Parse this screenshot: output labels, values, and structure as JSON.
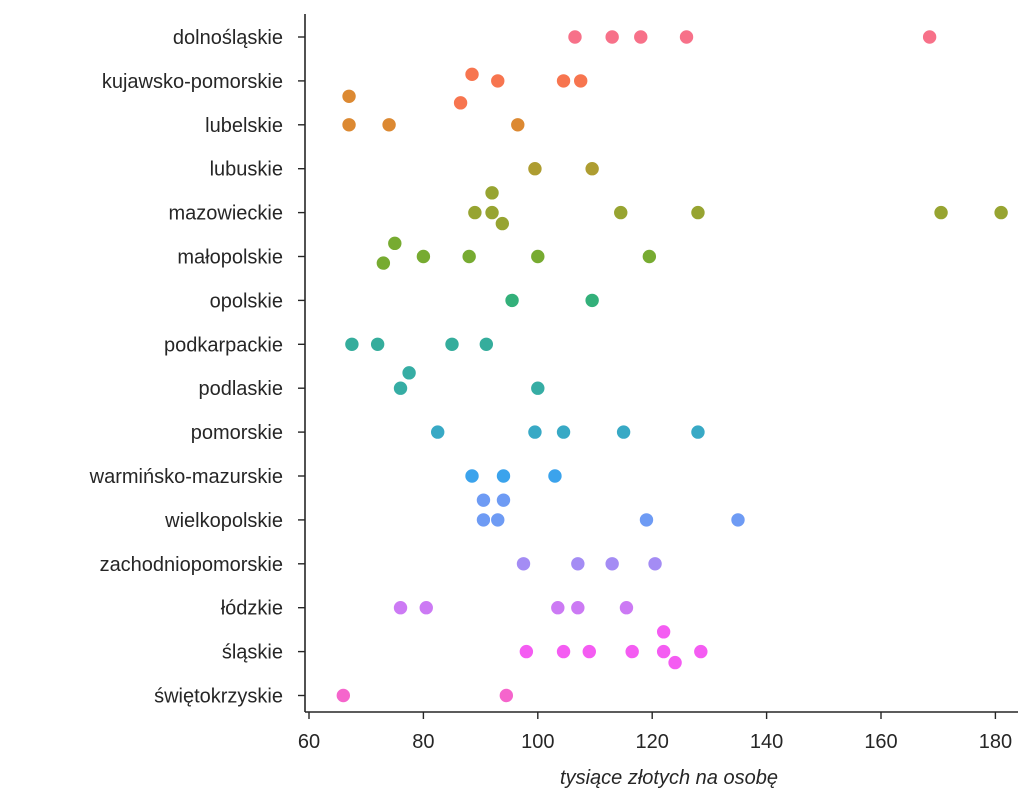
{
  "chart_data": {
    "type": "scatter",
    "subtype": "strip",
    "title": "",
    "xlabel": "tysiące złotych na osobę",
    "ylabel": "",
    "xlim": [
      59,
      184
    ],
    "xticks": [
      60,
      80,
      100,
      120,
      140,
      160,
      180
    ],
    "grid": false,
    "legend": "none",
    "categories": [
      "dolnośląskie",
      "kujawsko-pomorskie",
      "lubelskie",
      "lubuskie",
      "mazowieckie",
      "małopolskie",
      "opolskie",
      "podkarpackie",
      "podlaskie",
      "pomorskie",
      "warmińsko-mazurskie",
      "wielkopolskie",
      "zachodniopomorskie",
      "łódzkie",
      "śląskie",
      "świętokrzyskie"
    ],
    "colors": [
      "#f77189",
      "#f7754f",
      "#dc8932",
      "#ae9d31",
      "#97a431",
      "#77ab31",
      "#33b07a",
      "#35ad9c",
      "#36ada4",
      "#38a9c5",
      "#3ba3ec",
      "#6e9bf4",
      "#a48cf4",
      "#cc7af4",
      "#f45cf2",
      "#f565cc"
    ],
    "points": [
      [
        106.5,
        113,
        118,
        126,
        168.5
      ],
      [
        86.5,
        88.5,
        93,
        104.5,
        107.5
      ],
      [
        67,
        67,
        74,
        96.5
      ],
      [
        99.5,
        109.5
      ],
      [
        92,
        89,
        92,
        93.8,
        114.5,
        128,
        170.5,
        181
      ],
      [
        75,
        73,
        80,
        88,
        100,
        119.5
      ],
      [
        95.5,
        109.5
      ],
      [
        67.5,
        72,
        85,
        91
      ],
      [
        77.5,
        76,
        100
      ],
      [
        82.5,
        99.5,
        104.5,
        115,
        128
      ],
      [
        88.5,
        94,
        103
      ],
      [
        90.5,
        94,
        90.5,
        93,
        119,
        135
      ],
      [
        97.5,
        107,
        113,
        120.5
      ],
      [
        76,
        80.5,
        103.5,
        107,
        115.5
      ],
      [
        122,
        98,
        104.5,
        109,
        116.5,
        122,
        124,
        128.5
      ],
      [
        66,
        94.5
      ]
    ],
    "offsets": [
      [
        0,
        0,
        0,
        0,
        0
      ],
      [
        0.5,
        -0.15,
        0,
        0,
        0
      ],
      [
        -0.65,
        0,
        0,
        0
      ],
      [
        0,
        0
      ],
      [
        -0.45,
        0,
        0,
        0.25,
        0,
        0,
        0,
        0
      ],
      [
        -0.3,
        0.15,
        0,
        0,
        0,
        0
      ],
      [
        0,
        0
      ],
      [
        0,
        0,
        0,
        0
      ],
      [
        -0.35,
        0,
        0
      ],
      [
        0,
        0,
        0,
        0,
        0
      ],
      [
        0,
        0,
        0
      ],
      [
        -0.45,
        -0.45,
        0,
        0,
        0,
        0
      ],
      [
        0,
        0,
        0,
        0
      ],
      [
        0,
        0,
        0,
        0,
        0
      ],
      [
        -0.45,
        0,
        0,
        0,
        0,
        0,
        0.25,
        0
      ],
      [
        0,
        0
      ]
    ]
  }
}
